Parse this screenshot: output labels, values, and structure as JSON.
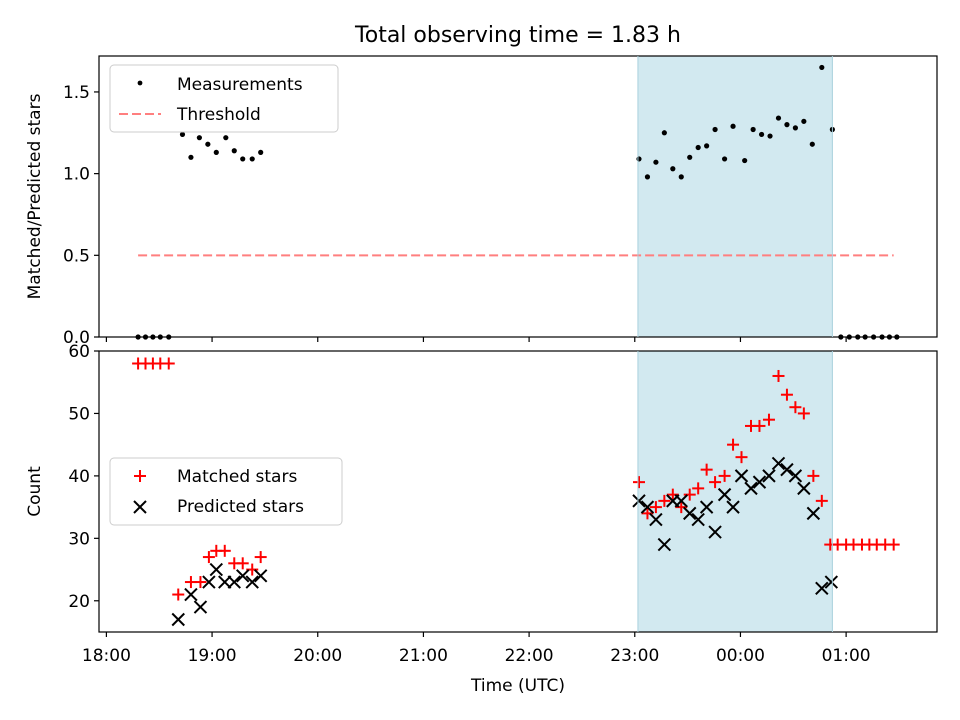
{
  "figure": {
    "title": "Total observing time = 1.83 h",
    "xlabel": "Time (UTC)",
    "x_ticks": [
      "18:00",
      "19:00",
      "20:00",
      "21:00",
      "22:00",
      "23:00",
      "00:00",
      "01:00"
    ],
    "x_range_hours": [
      17.93,
      25.86
    ],
    "shaded_span_hours": [
      23.03,
      24.87
    ],
    "colors": {
      "shade": "#d2e9f0",
      "matched": "#ff0000",
      "threshold": "#ff7f7f",
      "predicted": "#000000",
      "measurements": "#000000"
    }
  },
  "chart_data": [
    {
      "type": "scatter",
      "ylabel": "Matched/Predicted stars",
      "ylim": [
        0,
        1.72
      ],
      "y_ticks": [
        0.0,
        0.5,
        1.0,
        1.5
      ],
      "y_tick_labels": [
        "0.0",
        "0.5",
        "1.0",
        "1.5"
      ],
      "legend": {
        "placement": "upper-left",
        "entries": [
          "Measurements",
          "Threshold"
        ]
      },
      "threshold": {
        "value": 0.5,
        "x_range": [
          18.3,
          25.45
        ],
        "style": "dashed"
      },
      "series": [
        {
          "name": "Measurements",
          "marker": "dot",
          "points": [
            [
              18.3,
              0.0
            ],
            [
              18.37,
              0.0
            ],
            [
              18.44,
              0.0
            ],
            [
              18.51,
              0.0
            ],
            [
              18.59,
              0.0
            ],
            [
              18.72,
              1.24
            ],
            [
              18.8,
              1.1
            ],
            [
              18.88,
              1.22
            ],
            [
              18.96,
              1.18
            ],
            [
              19.04,
              1.13
            ],
            [
              19.13,
              1.22
            ],
            [
              19.21,
              1.14
            ],
            [
              19.29,
              1.09
            ],
            [
              19.38,
              1.09
            ],
            [
              19.46,
              1.13
            ],
            [
              23.04,
              1.09
            ],
            [
              23.12,
              0.98
            ],
            [
              23.2,
              1.07
            ],
            [
              23.28,
              1.25
            ],
            [
              23.36,
              1.03
            ],
            [
              23.44,
              0.98
            ],
            [
              23.52,
              1.1
            ],
            [
              23.6,
              1.16
            ],
            [
              23.68,
              1.17
            ],
            [
              23.76,
              1.27
            ],
            [
              23.85,
              1.09
            ],
            [
              23.93,
              1.29
            ],
            [
              24.04,
              1.08
            ],
            [
              24.12,
              1.27
            ],
            [
              24.2,
              1.24
            ],
            [
              24.28,
              1.23
            ],
            [
              24.36,
              1.34
            ],
            [
              24.44,
              1.3
            ],
            [
              24.52,
              1.28
            ],
            [
              24.6,
              1.32
            ],
            [
              24.68,
              1.18
            ],
            [
              24.77,
              1.65
            ],
            [
              24.87,
              1.27
            ],
            [
              24.95,
              0.0
            ],
            [
              25.03,
              0.0
            ],
            [
              25.11,
              0.0
            ],
            [
              25.18,
              0.0
            ],
            [
              25.26,
              0.0
            ],
            [
              25.34,
              0.0
            ],
            [
              25.41,
              0.0
            ],
            [
              25.48,
              0.0
            ]
          ]
        }
      ]
    },
    {
      "type": "scatter",
      "ylabel": "Count",
      "ylim": [
        15,
        60
      ],
      "y_ticks": [
        20,
        30,
        40,
        50,
        60
      ],
      "y_tick_labels": [
        "20",
        "30",
        "40",
        "50",
        "60"
      ],
      "legend": {
        "placement": "center-left",
        "entries": [
          "Matched stars",
          "Predicted stars"
        ]
      },
      "series": [
        {
          "name": "Matched stars",
          "marker": "plus",
          "points": [
            [
              18.3,
              58
            ],
            [
              18.37,
              58
            ],
            [
              18.44,
              58
            ],
            [
              18.51,
              58
            ],
            [
              18.59,
              58
            ],
            [
              18.68,
              21
            ],
            [
              18.8,
              23
            ],
            [
              18.89,
              23
            ],
            [
              18.97,
              27
            ],
            [
              19.04,
              28
            ],
            [
              19.12,
              28
            ],
            [
              19.21,
              26
            ],
            [
              19.29,
              26
            ],
            [
              19.38,
              25
            ],
            [
              19.46,
              27
            ],
            [
              23.04,
              39
            ],
            [
              23.12,
              34
            ],
            [
              23.2,
              35
            ],
            [
              23.28,
              36
            ],
            [
              23.36,
              37
            ],
            [
              23.44,
              35
            ],
            [
              23.52,
              37
            ],
            [
              23.6,
              38
            ],
            [
              23.68,
              41
            ],
            [
              23.76,
              39
            ],
            [
              23.85,
              40
            ],
            [
              23.93,
              45
            ],
            [
              24.01,
              43
            ],
            [
              24.1,
              48
            ],
            [
              24.18,
              48
            ],
            [
              24.27,
              49
            ],
            [
              24.36,
              56
            ],
            [
              24.44,
              53
            ],
            [
              24.52,
              51
            ],
            [
              24.6,
              50
            ],
            [
              24.69,
              40
            ],
            [
              24.77,
              36
            ],
            [
              24.85,
              29
            ],
            [
              24.92,
              29
            ],
            [
              25.0,
              29
            ],
            [
              25.07,
              29
            ],
            [
              25.15,
              29
            ],
            [
              25.22,
              29
            ],
            [
              25.29,
              29
            ],
            [
              25.37,
              29
            ],
            [
              25.45,
              29
            ]
          ]
        },
        {
          "name": "Predicted stars",
          "marker": "x",
          "points": [
            [
              18.68,
              17
            ],
            [
              18.8,
              21
            ],
            [
              18.89,
              19
            ],
            [
              18.97,
              23
            ],
            [
              19.04,
              25
            ],
            [
              19.12,
              23
            ],
            [
              19.21,
              23
            ],
            [
              19.29,
              24
            ],
            [
              19.38,
              23
            ],
            [
              19.46,
              24
            ],
            [
              23.04,
              36
            ],
            [
              23.12,
              35
            ],
            [
              23.2,
              33
            ],
            [
              23.28,
              29
            ],
            [
              23.36,
              36
            ],
            [
              23.44,
              36
            ],
            [
              23.52,
              34
            ],
            [
              23.6,
              33
            ],
            [
              23.68,
              35
            ],
            [
              23.76,
              31
            ],
            [
              23.85,
              37
            ],
            [
              23.93,
              35
            ],
            [
              24.01,
              40
            ],
            [
              24.1,
              38
            ],
            [
              24.18,
              39
            ],
            [
              24.27,
              40
            ],
            [
              24.36,
              42
            ],
            [
              24.44,
              41
            ],
            [
              24.52,
              40
            ],
            [
              24.6,
              38
            ],
            [
              24.69,
              34
            ],
            [
              24.77,
              22
            ],
            [
              24.86,
              23
            ]
          ]
        }
      ]
    }
  ]
}
